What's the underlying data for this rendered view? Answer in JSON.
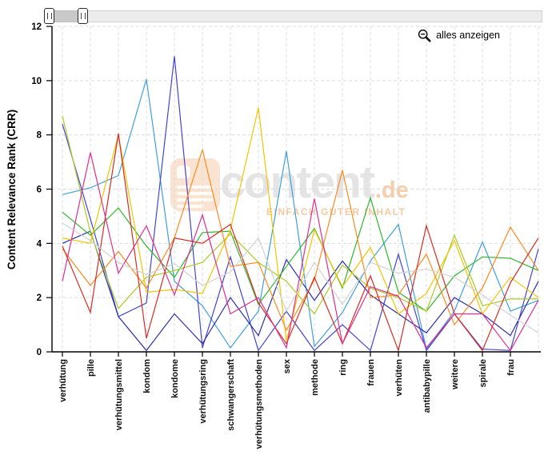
{
  "controls": {
    "zoom_out_label": "alles anzeigen"
  },
  "watermark": {
    "brand": "content",
    "tld": "de",
    "tagline": "EINFACH GUTER INHALT"
  },
  "chart_data": {
    "type": "line",
    "title": "",
    "xlabel": "",
    "ylabel": "Content Relevance Rank (CRR)",
    "ylim": [
      0,
      12
    ],
    "yticks": [
      0,
      2,
      4,
      6,
      8,
      10,
      12
    ],
    "grid": true,
    "legend_position": "none",
    "x_tick_rotation": -90,
    "categories": [
      "verhütung",
      "pille",
      "verhütungsmittel",
      "kondom",
      "kondome",
      "verhütungsring",
      "schwangerschaft",
      "verhütungsmethoden",
      "sex",
      "methode",
      "ring",
      "frauen",
      "verhüten",
      "antibabypille",
      "weitere",
      "spirale",
      "frau"
    ],
    "series": [
      {
        "name": "sky-blue",
        "color": "#3FA0DC",
        "values": [
          5.8,
          6.05,
          6.5,
          10.05,
          2.6,
          1.7,
          0.15,
          1.5,
          7.4,
          0.2,
          1.45,
          3.35,
          4.7,
          0.1,
          1.5,
          4.05,
          1.5
        ],
        "next_offscreen_value": 1.9
      },
      {
        "name": "royal-blue",
        "color": "#4444D4",
        "values": [
          8.4,
          4.9,
          1.3,
          1.8,
          10.9,
          0.15,
          3.5,
          0.05,
          1.5,
          0.05,
          1.0,
          0.05,
          3.6,
          0.05,
          1.4,
          0.1,
          0.05
        ],
        "next_offscreen_value": 3.8
      },
      {
        "name": "navy-blue",
        "color": "#2B2FB0",
        "values": [
          4.0,
          4.45,
          1.3,
          0.05,
          1.4,
          0.3,
          2.0,
          0.6,
          3.4,
          1.9,
          3.35,
          2.1,
          1.4,
          0.7,
          2.0,
          1.4,
          0.6
        ],
        "next_offscreen_value": 2.6
      },
      {
        "name": "green",
        "color": "#2EB82E",
        "values": [
          5.15,
          4.3,
          5.3,
          3.9,
          2.75,
          4.4,
          4.45,
          1.75,
          3.15,
          4.55,
          2.35,
          5.68,
          2.2,
          1.5,
          2.8,
          3.5,
          3.45
        ],
        "next_offscreen_value": 3.0
      },
      {
        "name": "lime",
        "color": "#AACC22",
        "values": [
          8.7,
          4.4,
          1.6,
          2.75,
          3.0,
          3.3,
          4.35,
          3.3,
          2.6,
          1.4,
          3.2,
          2.35,
          2.0,
          1.5,
          4.3,
          1.7,
          1.95
        ],
        "next_offscreen_value": 1.95
      },
      {
        "name": "gold",
        "color": "#F2C500",
        "values": [
          4.2,
          4.0,
          8.0,
          2.2,
          2.3,
          2.15,
          4.5,
          9.0,
          0.4,
          4.5,
          2.4,
          3.85,
          1.4,
          2.15,
          4.1,
          1.4,
          2.75
        ],
        "next_offscreen_value": 2.0
      },
      {
        "name": "orange",
        "color": "#FF8A1E",
        "values": [
          3.8,
          2.45,
          3.7,
          2.35,
          4.2,
          7.45,
          3.15,
          3.3,
          0.8,
          2.65,
          6.7,
          2.0,
          2.1,
          3.6,
          1.0,
          2.35,
          4.6
        ],
        "next_offscreen_value": 3.0
      },
      {
        "name": "red",
        "color": "#D92B23",
        "values": [
          3.9,
          1.45,
          8.05,
          0.5,
          4.2,
          4.0,
          4.7,
          1.8,
          0.3,
          2.75,
          0.3,
          2.8,
          0.05,
          4.65,
          1.4,
          0.05,
          2.55
        ],
        "next_offscreen_value": 4.2
      },
      {
        "name": "magenta",
        "color": "#DE2E91",
        "values": [
          2.6,
          7.35,
          2.9,
          4.65,
          2.1,
          5.05,
          1.4,
          2.0,
          0.15,
          5.65,
          0.3,
          2.4,
          2.05,
          0.15,
          1.4,
          1.4,
          0.05
        ],
        "next_offscreen_value": 1.9
      },
      {
        "name": "gray",
        "color": "#D2D2D2",
        "values": [
          4.75,
          4.1,
          3.3,
          2.85,
          3.25,
          2.45,
          2.95,
          4.2,
          1.5,
          3.3,
          1.75,
          3.3,
          2.9,
          3.05,
          2.75,
          2.1,
          1.35
        ],
        "next_offscreen_value": 0.7
      }
    ]
  }
}
